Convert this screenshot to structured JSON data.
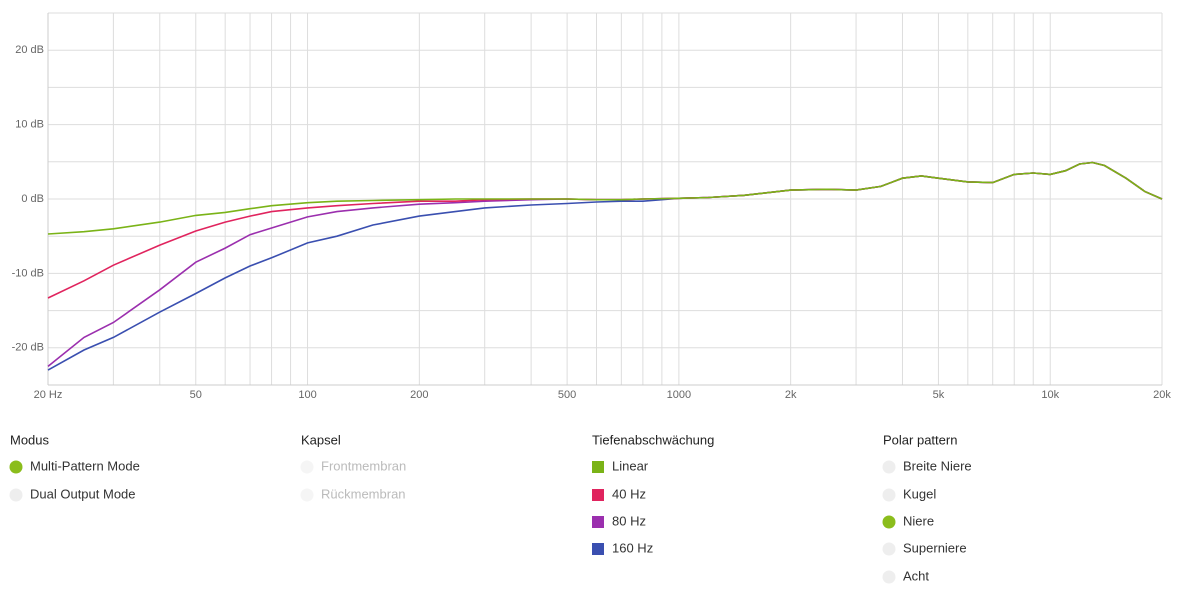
{
  "chart_data": {
    "type": "line",
    "log_x": true,
    "x": [
      20,
      25,
      30,
      40,
      50,
      60,
      70,
      80,
      100,
      120,
      150,
      200,
      250,
      300,
      400,
      500,
      600,
      700,
      800,
      1000,
      1200,
      1500,
      2000,
      2500,
      3000,
      3500,
      4000,
      4500,
      5000,
      6000,
      7000,
      8000,
      9000,
      10000,
      11000,
      12000,
      13000,
      14000,
      16000,
      18000,
      20000
    ],
    "xlim": [
      20,
      20000
    ],
    "xticks": [
      {
        "value": 20,
        "label": "20 Hz"
      },
      50,
      100,
      200,
      500,
      1000,
      {
        "value": 2000,
        "label": "2k"
      },
      {
        "value": 5000,
        "label": "5k"
      },
      {
        "value": 10000,
        "label": "10k"
      },
      {
        "value": 20000,
        "label": "20k"
      }
    ],
    "xgrid": [
      30,
      40,
      60,
      70,
      80,
      90,
      300,
      400,
      600,
      700,
      800,
      900,
      3000,
      4000,
      6000,
      7000,
      8000,
      9000
    ],
    "ylim": [
      -25,
      25
    ],
    "yticks": [
      {
        "value": -20,
        "label": "-20 dB"
      },
      {
        "value": -10,
        "label": "-10 dB"
      },
      {
        "value": 0,
        "label": "0 dB"
      },
      {
        "value": 10,
        "label": "10 dB"
      },
      {
        "value": 20,
        "label": "20 dB"
      }
    ],
    "ygrid": [
      -25,
      -15,
      -5,
      5,
      15,
      25
    ],
    "grid": true,
    "legend_title": "Tiefenabschwächung",
    "series": [
      {
        "name": "Linear",
        "color": "#7ab317",
        "values": [
          -4.7,
          -4.4,
          -4.0,
          -3.1,
          -2.2,
          -1.8,
          -1.3,
          -0.9,
          -0.5,
          -0.3,
          -0.2,
          -0.1,
          0,
          0,
          0,
          0,
          -0.1,
          -0.1,
          0,
          0.1,
          0.2,
          0.5,
          1.2,
          1.3,
          1.2,
          1.7,
          2.8,
          3.1,
          2.8,
          2.3,
          2.2,
          3.3,
          3.5,
          3.3,
          3.8,
          4.7,
          4.9,
          4.5,
          2.8,
          1.0,
          0
        ]
      },
      {
        "name": "40 Hz",
        "color": "#e0245e",
        "values": [
          -13.3,
          -11.0,
          -8.9,
          -6.2,
          -4.3,
          -3.1,
          -2.3,
          -1.7,
          -1.2,
          -0.9,
          -0.6,
          -0.3,
          -0.3,
          -0.1,
          0,
          0,
          -0.1,
          -0.1,
          0,
          0.1,
          0.2,
          0.5,
          1.2,
          1.3,
          1.2,
          1.7,
          2.8,
          3.1,
          2.8,
          2.3,
          2.2,
          3.3,
          3.5,
          3.3,
          3.8,
          4.7,
          4.9,
          4.5,
          2.8,
          1.0,
          0
        ]
      },
      {
        "name": "80 Hz",
        "color": "#9b2fae",
        "values": [
          -22.5,
          -18.6,
          -16.6,
          -12.2,
          -8.5,
          -6.6,
          -4.8,
          -3.9,
          -2.4,
          -1.7,
          -1.2,
          -0.7,
          -0.5,
          -0.3,
          -0.1,
          0,
          -0.1,
          -0.1,
          0,
          0.1,
          0.2,
          0.5,
          1.2,
          1.3,
          1.2,
          1.7,
          2.8,
          3.1,
          2.8,
          2.3,
          2.2,
          3.3,
          3.5,
          3.3,
          3.8,
          4.7,
          4.9,
          4.5,
          2.8,
          1.0,
          0
        ]
      },
      {
        "name": "160 Hz",
        "color": "#3a4fb0",
        "values": [
          -23,
          -20.3,
          -18.6,
          -15.2,
          -12.7,
          -10.6,
          -9.0,
          -7.9,
          -5.9,
          -5.0,
          -3.5,
          -2.3,
          -1.7,
          -1.2,
          -0.8,
          -0.6,
          -0.4,
          -0.3,
          -0.3,
          0.1,
          0.2,
          0.5,
          1.2,
          1.3,
          1.2,
          1.7,
          2.8,
          3.1,
          2.8,
          2.3,
          2.2,
          3.3,
          3.5,
          3.3,
          3.8,
          4.7,
          4.9,
          4.5,
          2.8,
          1.0,
          0
        ]
      }
    ]
  },
  "controls": [
    {
      "title": "Modus",
      "column": 0,
      "options": [
        {
          "label": "Multi-Pattern Mode",
          "state": "selected"
        },
        {
          "label": "Dual Output Mode",
          "state": "off"
        }
      ]
    },
    {
      "title": "Kapsel",
      "column": 1,
      "options": [
        {
          "label": "Frontmembran",
          "state": "disabled"
        },
        {
          "label": "Rückmembran",
          "state": "disabled"
        }
      ]
    },
    {
      "title": "Polar pattern",
      "column": 3,
      "options": [
        {
          "label": "Breite Niere",
          "state": "off"
        },
        {
          "label": "Kugel",
          "state": "off"
        },
        {
          "label": "Niere",
          "state": "selected"
        },
        {
          "label": "Superniere",
          "state": "off"
        },
        {
          "label": "Acht",
          "state": "off"
        }
      ]
    }
  ]
}
